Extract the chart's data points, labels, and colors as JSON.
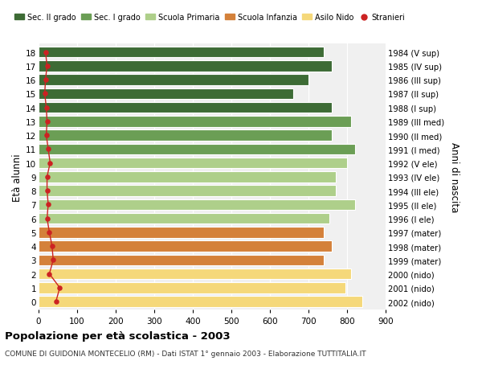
{
  "ages": [
    18,
    17,
    16,
    15,
    14,
    13,
    12,
    11,
    10,
    9,
    8,
    7,
    6,
    5,
    4,
    3,
    2,
    1,
    0
  ],
  "right_labels": [
    "1984 (V sup)",
    "1985 (IV sup)",
    "1986 (III sup)",
    "1987 (II sup)",
    "1988 (I sup)",
    "1989 (III med)",
    "1990 (II med)",
    "1991 (I med)",
    "1992 (V ele)",
    "1993 (IV ele)",
    "1994 (III ele)",
    "1995 (II ele)",
    "1996 (I ele)",
    "1997 (mater)",
    "1998 (mater)",
    "1999 (mater)",
    "2000 (nido)",
    "2001 (nido)",
    "2002 (nido)"
  ],
  "bar_values": [
    740,
    760,
    700,
    660,
    760,
    810,
    760,
    820,
    800,
    770,
    770,
    820,
    755,
    740,
    760,
    740,
    810,
    795,
    840
  ],
  "stranieri_values": [
    18,
    22,
    18,
    16,
    20,
    22,
    20,
    25,
    30,
    22,
    22,
    25,
    22,
    28,
    35,
    38,
    28,
    55,
    45
  ],
  "bar_colors": [
    "#3d6b35",
    "#3d6b35",
    "#3d6b35",
    "#3d6b35",
    "#3d6b35",
    "#6b9e55",
    "#6b9e55",
    "#6b9e55",
    "#aecf8a",
    "#aecf8a",
    "#aecf8a",
    "#aecf8a",
    "#aecf8a",
    "#d4813a",
    "#d4813a",
    "#d4813a",
    "#f5d87a",
    "#f5d87a",
    "#f5d87a"
  ],
  "legend_labels": [
    "Sec. II grado",
    "Sec. I grado",
    "Scuola Primaria",
    "Scuola Infanzia",
    "Asilo Nido",
    "Stranieri"
  ],
  "legend_colors": [
    "#3d6b35",
    "#6b9e55",
    "#aecf8a",
    "#d4813a",
    "#f5d87a",
    "#cc2222"
  ],
  "ylabel_left": "Età alunni",
  "ylabel_right": "Anni di nascita",
  "title": "Popolazione per età scolastica - 2003",
  "subtitle": "COMUNE DI GUIDONIA MONTECELIO (RM) - Dati ISTAT 1° gennaio 2003 - Elaborazione TUTTITALIA.IT",
  "xlim": [
    0,
    900
  ],
  "xticks": [
    0,
    100,
    200,
    300,
    400,
    500,
    600,
    700,
    800,
    900
  ],
  "background_color": "#ffffff",
  "plot_bg_color": "#f0f0f0",
  "bar_height": 0.78,
  "stranieri_color": "#cc2222",
  "stranieri_line_color": "#cc2222"
}
